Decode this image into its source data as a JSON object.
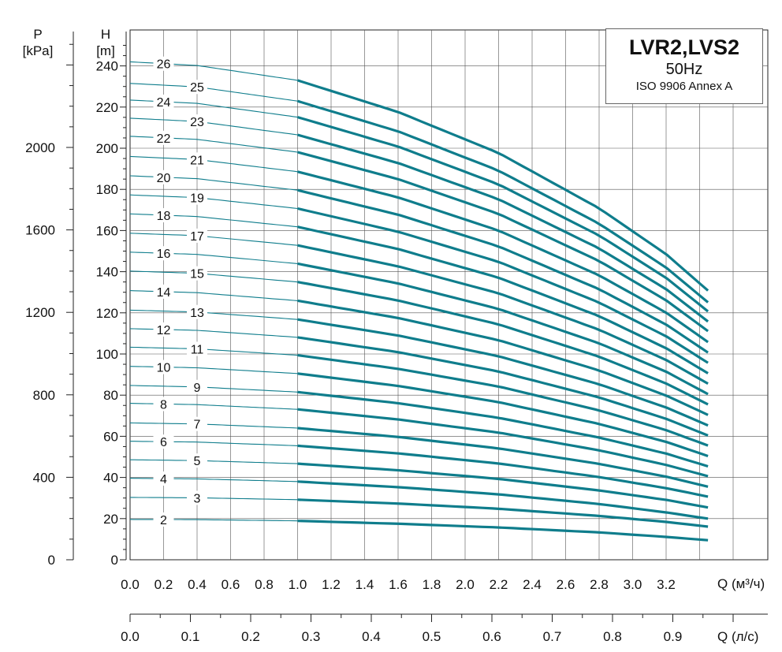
{
  "chart_data": {
    "type": "line",
    "title": "LVR2,LVS2",
    "subtitle": "50Hz",
    "standard": "ISO 9906 Annex A",
    "left_axis": {
      "label_top": "P",
      "label_unit": "[kPa]",
      "ticks": [
        0,
        400,
        800,
        1200,
        1600,
        2000
      ],
      "range": [
        0,
        2600
      ]
    },
    "y_axis": {
      "label_top": "H",
      "label_unit": "[m]",
      "ticks": [
        0,
        20,
        40,
        60,
        80,
        100,
        120,
        140,
        160,
        180,
        200,
        220,
        240
      ],
      "range": [
        0,
        260
      ]
    },
    "x_axis": {
      "label": "Q (м³/ч)",
      "ticks": [
        0.0,
        0.2,
        0.4,
        0.6,
        0.8,
        1.0,
        1.2,
        1.4,
        1.6,
        1.8,
        2.0,
        2.2,
        2.4,
        2.6,
        2.8,
        3.0,
        3.2
      ],
      "range": [
        0,
        3.6
      ]
    },
    "x2_axis": {
      "label": "Q (л/с)",
      "ticks": [
        0.0,
        0.1,
        0.2,
        0.3,
        0.4,
        0.5,
        0.6,
        0.7,
        0.8,
        0.9
      ],
      "range": [
        0,
        1.0
      ]
    },
    "recommended_range": [
      1.0,
      3.45
    ],
    "x": [
      0.0,
      0.4,
      1.0,
      1.6,
      2.2,
      2.8,
      3.2,
      3.45
    ],
    "series": [
      {
        "name": "2",
        "values": [
          19.6,
          19.5,
          18.9,
          17.5,
          15.7,
          13.3,
          11.1,
          9.5
        ]
      },
      {
        "name": "3",
        "values": [
          30.3,
          30.1,
          29.2,
          27.3,
          24.8,
          21.3,
          18.4,
          16.1
        ]
      },
      {
        "name": "4",
        "values": [
          39.6,
          39.3,
          38.0,
          35.3,
          31.8,
          27.1,
          23.0,
          20.0
        ]
      },
      {
        "name": "5",
        "values": [
          48.6,
          48.2,
          46.7,
          43.5,
          39.3,
          33.7,
          29.1,
          25.4
        ]
      },
      {
        "name": "6",
        "values": [
          57.6,
          57.2,
          55.4,
          51.7,
          46.8,
          40.2,
          34.8,
          30.7
        ]
      },
      {
        "name": "7",
        "values": [
          66.5,
          66.0,
          64.0,
          59.7,
          54.1,
          46.6,
          40.4,
          35.5
        ]
      },
      {
        "name": "8",
        "values": [
          76.0,
          75.4,
          73.1,
          68.2,
          61.8,
          53.2,
          46.1,
          40.6
        ]
      },
      {
        "name": "9",
        "values": [
          84.7,
          84.0,
          81.5,
          76.1,
          69.0,
          59.4,
          51.6,
          45.4
        ]
      },
      {
        "name": "10",
        "values": [
          94.0,
          93.3,
          90.5,
          84.5,
          76.6,
          66.0,
          57.3,
          50.4
        ]
      },
      {
        "name": "11",
        "values": [
          103.3,
          102.5,
          99.4,
          92.8,
          84.2,
          72.6,
          63.0,
          55.5
        ]
      },
      {
        "name": "12",
        "values": [
          112.3,
          111.5,
          108.1,
          100.9,
          91.5,
          78.9,
          68.5,
          60.4
        ]
      },
      {
        "name": "13",
        "values": [
          121.3,
          120.4,
          116.8,
          109.0,
          98.9,
          85.3,
          74.0,
          65.3
        ]
      },
      {
        "name": "14",
        "values": [
          130.8,
          129.8,
          125.9,
          117.5,
          106.7,
          92.0,
          79.8,
          70.4
        ]
      },
      {
        "name": "15",
        "values": [
          140.3,
          139.2,
          135.0,
          126.0,
          114.4,
          98.7,
          85.7,
          75.5
        ]
      },
      {
        "name": "16",
        "values": [
          149.5,
          148.4,
          143.9,
          134.3,
          121.9,
          105.2,
          91.4,
          80.5
        ]
      },
      {
        "name": "17",
        "values": [
          158.7,
          157.5,
          152.8,
          142.6,
          129.5,
          111.8,
          97.1,
          85.6
        ]
      },
      {
        "name": "18",
        "values": [
          168.1,
          166.8,
          161.8,
          151.0,
          137.1,
          118.4,
          102.8,
          90.6
        ]
      },
      {
        "name": "19",
        "values": [
          177.3,
          176.0,
          170.7,
          159.4,
          144.8,
          125.0,
          108.6,
          95.7
        ]
      },
      {
        "name": "20",
        "values": [
          186.6,
          185.2,
          179.6,
          167.7,
          152.3,
          131.5,
          114.3,
          100.7
        ]
      },
      {
        "name": "21",
        "values": [
          196.0,
          194.5,
          188.6,
          176.1,
          160.0,
          138.2,
          120.1,
          105.8
        ]
      },
      {
        "name": "22",
        "values": [
          205.8,
          204.3,
          198.1,
          185.0,
          168.1,
          145.2,
          126.1,
          111.1
        ]
      },
      {
        "name": "23",
        "values": [
          214.6,
          213.0,
          206.5,
          192.8,
          175.2,
          151.3,
          131.5,
          115.8
        ]
      },
      {
        "name": "24",
        "values": [
          223.4,
          221.8,
          215.1,
          200.8,
          182.4,
          157.6,
          137.0,
          120.7
        ]
      },
      {
        "name": "25",
        "values": [
          231.5,
          229.8,
          222.9,
          208.2,
          189.1,
          163.3,
          142.0,
          125.1
        ]
      },
      {
        "name": "26",
        "values": [
          242.0,
          240.2,
          233.0,
          217.6,
          197.7,
          170.8,
          148.5,
          130.8
        ]
      }
    ],
    "grid": true,
    "legend": "top-right",
    "colors": {
      "curve": "#0f7d8c",
      "grid": "#555555",
      "axis": "#222222"
    }
  }
}
